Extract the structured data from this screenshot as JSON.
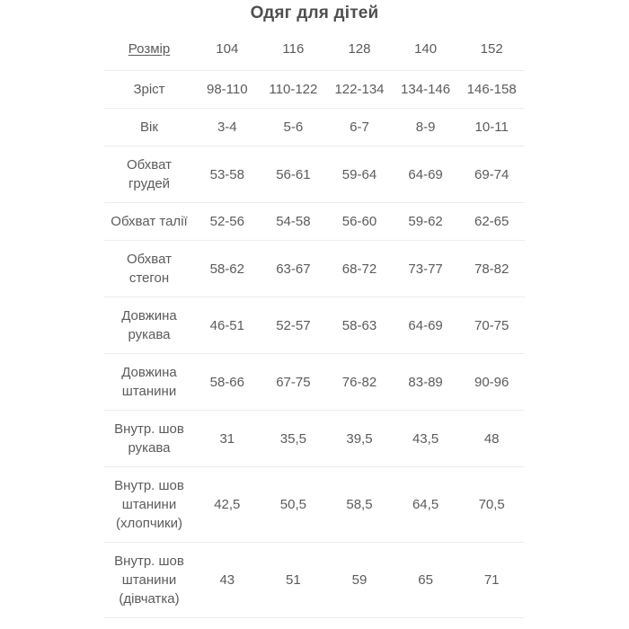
{
  "title": "Одяг для дітей",
  "colors": {
    "bg": "#ffffff",
    "title-text": "#4d4e50",
    "body-text": "#5a5b5e",
    "border": "#edecea"
  },
  "table": {
    "header": {
      "label": "Розмір",
      "sizes": [
        "104",
        "116",
        "128",
        "140",
        "152"
      ]
    },
    "rows": [
      {
        "label": "Зріст",
        "values": [
          "98-110",
          "110-122",
          "122-134",
          "134-146",
          "146-158"
        ]
      },
      {
        "label": "Вік",
        "values": [
          "3-4",
          "5-6",
          "6-7",
          "8-9",
          "10-11"
        ]
      },
      {
        "label": "Обхват грудей",
        "values": [
          "53-58",
          "56-61",
          "59-64",
          "64-69",
          "69-74"
        ]
      },
      {
        "label": "Обхват талії",
        "values": [
          "52-56",
          "54-58",
          "56-60",
          "59-62",
          "62-65"
        ]
      },
      {
        "label": "Обхват стегон",
        "values": [
          "58-62",
          "63-67",
          "68-72",
          "73-77",
          "78-82"
        ]
      },
      {
        "label": "Довжина рукава",
        "values": [
          "46-51",
          "52-57",
          "58-63",
          "64-69",
          "70-75"
        ]
      },
      {
        "label": "Довжина штанини",
        "values": [
          "58-66",
          "67-75",
          "76-82",
          "83-89",
          "90-96"
        ]
      },
      {
        "label": "Внутр. шов рукава",
        "values": [
          "31",
          "35,5",
          "39,5",
          "43,5",
          "48"
        ]
      },
      {
        "label": "Внутр. шов штанини (хлопчики)",
        "values": [
          "42,5",
          "50,5",
          "58,5",
          "64,5",
          "70,5"
        ]
      },
      {
        "label": "Внутр. шов штанини (дівчатка)",
        "values": [
          "43",
          "51",
          "59",
          "65",
          "71"
        ]
      }
    ]
  }
}
